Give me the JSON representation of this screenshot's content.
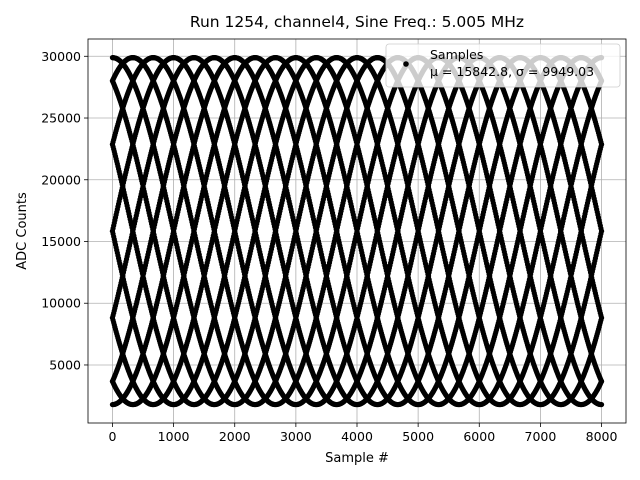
{
  "chart_data": {
    "type": "scatter",
    "title": "Run 1254, channel4, Sine Freq.: 5.005 MHz",
    "xlabel": "Sample #",
    "ylabel": "ADC Counts",
    "xlim": [
      -400,
      8400
    ],
    "ylim": [
      300,
      31400
    ],
    "xticks": [
      0,
      1000,
      2000,
      3000,
      4000,
      5000,
      6000,
      7000,
      8000
    ],
    "yticks": [
      5000,
      10000,
      15000,
      20000,
      25000,
      30000
    ],
    "grid": true,
    "legend_position": "top-right",
    "marker_color": "#000000",
    "series": [
      {
        "name": "Samples",
        "stats_label": "μ = 15842.8, σ = 9949.03",
        "model": "sine",
        "x_range": [
          0,
          8000
        ],
        "amplitude": 14050,
        "offset": 15842.8,
        "period_samples": 4000,
        "phases_deg": [
          0,
          30,
          60,
          90,
          120,
          150,
          180,
          210,
          240,
          270,
          300,
          330
        ],
        "sample_step": 10
      }
    ]
  }
}
